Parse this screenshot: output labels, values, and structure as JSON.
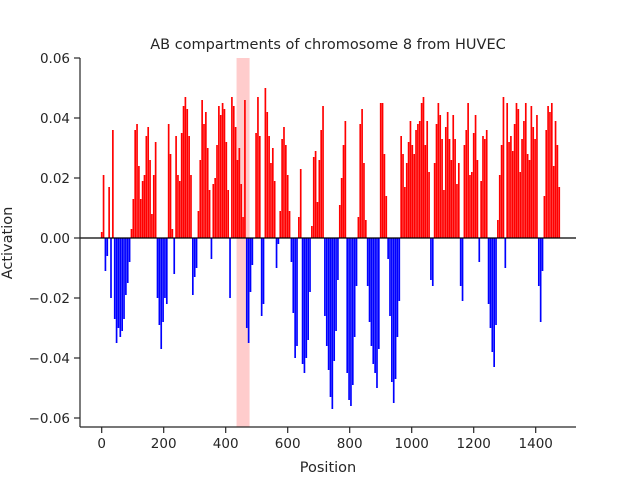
{
  "chart_data": {
    "type": "bar",
    "title": "AB compartments of chromosome 8 from HUVEC",
    "xlabel": "Position",
    "ylabel": "Activation",
    "xlim": [
      -70,
      1530
    ],
    "ylim": [
      -0.063,
      0.06
    ],
    "x_ticks": [
      0,
      200,
      400,
      600,
      800,
      1000,
      1200,
      1400
    ],
    "x_tick_labels": [
      "0",
      "200",
      "400",
      "600",
      "800",
      "1000",
      "1200",
      "1400"
    ],
    "y_ticks": [
      -0.06,
      -0.04,
      -0.02,
      0.0,
      0.02,
      0.04,
      0.06
    ],
    "y_tick_labels": [
      "−0.06",
      "−0.04",
      "−0.02",
      "0.00",
      "0.02",
      "0.04",
      "0.06"
    ],
    "grid": false,
    "colors": {
      "positive": "#ff0000",
      "negative": "#0000ff",
      "highlight": "#ffcccc",
      "zero_line": "#000000",
      "axis": "#262626"
    },
    "highlight_region": [
      435,
      477
    ],
    "series": [
      {
        "x_start": 0,
        "x_step": 6,
        "values": [
          0.002,
          0.021,
          -0.011,
          -0.006,
          0.017,
          -0.02,
          0.036,
          -0.027,
          -0.035,
          -0.03,
          -0.033,
          -0.031,
          -0.027,
          -0.019,
          -0.015,
          -0.008,
          0.003,
          0.013,
          0.036,
          0.038,
          0.024,
          0.013,
          0.019,
          0.021,
          0.034,
          0.037,
          0.026,
          0.008,
          0.021,
          0.032,
          -0.02,
          -0.029,
          -0.037,
          -0.028,
          -0.02,
          -0.022,
          0.038,
          0.028,
          0.003,
          -0.012,
          0.034,
          0.021,
          0.019,
          0.035,
          0.044,
          0.047,
          0.043,
          0.034,
          0.021,
          -0.019,
          -0.013,
          -0.01,
          0.009,
          0.026,
          0.046,
          0.038,
          0.042,
          0.03,
          0.016,
          -0.007,
          0.018,
          0.02,
          0.031,
          0.044,
          0.041,
          0.045,
          0.043,
          0.032,
          0.016,
          -0.02,
          0.047,
          0.044,
          0.037,
          0.026,
          0.03,
          0.018,
          0.007,
          0.046,
          -0.03,
          -0.035,
          -0.018,
          -0.009,
          0.0,
          0.035,
          0.047,
          0.034,
          -0.026,
          -0.022,
          0.05,
          0.042,
          0.034,
          0.025,
          0.03,
          0.019,
          -0.01,
          -0.002,
          0.009,
          0.033,
          0.037,
          0.031,
          0.021,
          0.009,
          -0.008,
          -0.025,
          -0.04,
          -0.036,
          0.007,
          0.023,
          -0.042,
          -0.045,
          -0.04,
          -0.034,
          -0.018,
          0.004,
          0.027,
          0.029,
          0.012,
          0.026,
          0.036,
          0.044,
          -0.026,
          -0.036,
          -0.044,
          -0.053,
          -0.057,
          -0.041,
          -0.031,
          -0.014,
          0.011,
          0.02,
          0.031,
          0.039,
          -0.045,
          -0.054,
          -0.056,
          -0.049,
          -0.033,
          -0.016,
          0.007,
          0.038,
          0.043,
          0.025,
          0.006,
          -0.016,
          -0.028,
          -0.036,
          -0.042,
          -0.045,
          -0.05,
          -0.037,
          0.045,
          0.045,
          0.028,
          0.014,
          -0.007,
          -0.026,
          -0.048,
          -0.055,
          -0.047,
          -0.033,
          -0.021,
          0.034,
          0.028,
          0.017,
          0.025,
          0.032,
          0.039,
          0.031,
          0.028,
          0.036,
          0.038,
          0.039,
          0.045,
          0.047,
          0.031,
          0.039,
          0.022,
          -0.014,
          -0.016,
          0.025,
          0.038,
          0.045,
          0.041,
          0.033,
          0.016,
          0.037,
          0.042,
          0.033,
          0.026,
          0.041,
          0.033,
          0.018,
          0.025,
          -0.016,
          -0.021,
          0.031,
          0.036,
          0.045,
          0.021,
          0.022,
          0.035,
          0.041,
          0.026,
          -0.008,
          0.019,
          0.034,
          0.033,
          0.036,
          -0.022,
          -0.03,
          -0.038,
          -0.043,
          -0.029,
          0.006,
          0.021,
          0.031,
          0.047,
          -0.01,
          0.045,
          0.032,
          0.034,
          0.029,
          0.038,
          0.045,
          0.043,
          0.022,
          0.033,
          0.039,
          0.045,
          0.028,
          0.026,
          0.044,
          0.037,
          0.033,
          0.041,
          -0.016,
          -0.028,
          -0.011,
          0.014,
          0.036,
          0.044,
          0.042,
          0.045,
          0.024,
          0.039,
          0.031,
          0.017
        ]
      }
    ]
  }
}
